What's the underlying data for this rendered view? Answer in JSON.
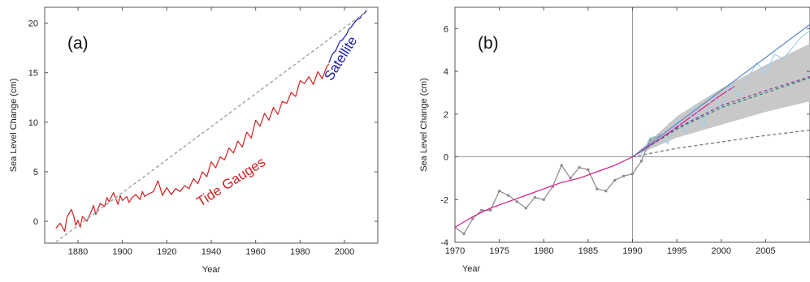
{
  "chart_data": [
    {
      "type": "line",
      "panel_label": "(a)",
      "title": "",
      "xlabel": "Year",
      "ylabel": "Sea Level Change (cm)",
      "xlim": [
        1865,
        2015
      ],
      "ylim": [
        -2.2,
        21.6
      ],
      "xticks": [
        1880,
        1900,
        1920,
        1940,
        1960,
        1980,
        2000
      ],
      "yticks": [
        0,
        5,
        10,
        15,
        20
      ],
      "grid": false,
      "legend": "none",
      "annotations": [
        {
          "text": "Tide Gauges",
          "x": 1950,
          "y": 3.6,
          "color": "#d02020",
          "rotate": -33
        },
        {
          "text": "Satellite",
          "x": 2000,
          "y": 16.2,
          "color": "#1a1aa8",
          "rotate": -58
        }
      ],
      "series": [
        {
          "color": "#d02020",
          "style": "solid",
          "x": [
            1870,
            1872,
            1874,
            1875,
            1877,
            1878,
            1879,
            1880,
            1881,
            1882,
            1884,
            1886,
            1887,
            1888,
            1890,
            1892,
            1893,
            1894,
            1896,
            1898,
            1899,
            1900,
            1902,
            1903,
            1904,
            1906,
            1908,
            1909,
            1910,
            1912,
            1914,
            1916,
            1917,
            1918,
            1920,
            1922,
            1924,
            1926,
            1928,
            1930,
            1932,
            1934,
            1936,
            1938,
            1940,
            1942,
            1944,
            1946,
            1948,
            1950,
            1952,
            1954,
            1956,
            1958,
            1960,
            1962,
            1964,
            1966,
            1968,
            1970,
            1972,
            1974,
            1976,
            1978,
            1980,
            1982,
            1984,
            1986,
            1988,
            1990,
            1992,
            1993
          ],
          "y": [
            -0.7,
            -0.2,
            -1.0,
            0.4,
            1.2,
            0.6,
            -0.4,
            0.1,
            -0.6,
            0.5,
            0.0,
            1.0,
            1.6,
            0.7,
            1.8,
            1.5,
            2.4,
            2.0,
            2.9,
            1.7,
            2.6,
            2.1,
            2.5,
            1.9,
            2.3,
            2.7,
            2.2,
            3.0,
            2.5,
            2.8,
            3.0,
            4.1,
            3.4,
            2.6,
            3.4,
            2.7,
            3.3,
            3.0,
            3.6,
            3.3,
            4.3,
            3.8,
            5.0,
            4.5,
            6.0,
            5.4,
            6.5,
            6.2,
            7.4,
            6.9,
            8.1,
            7.5,
            9.0,
            8.4,
            10.2,
            9.6,
            10.9,
            10.2,
            11.5,
            10.8,
            12.1,
            11.9,
            13.0,
            12.6,
            14.2,
            13.9,
            14.6,
            13.8,
            15.1,
            14.4,
            15.6,
            15.9
          ]
        },
        {
          "color": "#1a1aa8",
          "style": "solid",
          "x": [
            1993,
            1994,
            1995,
            1996,
            1997,
            1998,
            1999,
            2000,
            2001,
            2002,
            2003,
            2004,
            2005,
            2006,
            2007,
            2008,
            2009,
            2010
          ],
          "y": [
            16.0,
            16.6,
            17.0,
            17.2,
            17.7,
            18.2,
            18.3,
            18.6,
            18.9,
            19.4,
            19.6,
            19.9,
            20.2,
            20.4,
            20.5,
            20.9,
            21.0,
            21.3
          ]
        },
        {
          "color": "#999999",
          "style": "dashed",
          "x": [
            1870,
            2010
          ],
          "y": [
            -2.1,
            21.2
          ]
        }
      ]
    },
    {
      "type": "line",
      "panel_label": "(b)",
      "title": "",
      "xlabel": "Year",
      "ylabel": "Sea Level Change (cm)",
      "xlim": [
        1970,
        2010
      ],
      "ylim": [
        -4,
        7
      ],
      "xticks": [
        1970,
        1975,
        1980,
        1985,
        1990,
        1995,
        2000,
        2005
      ],
      "yticks": [
        -4,
        -2,
        0,
        2,
        4,
        6
      ],
      "grid": false,
      "legend": "none",
      "reference_lines": {
        "x": 1990,
        "y": 0
      },
      "band": {
        "color": "#c8c8c8",
        "x": [
          1990,
          1995,
          2000,
          2005,
          2010
        ],
        "upper": [
          0,
          1.9,
          3.2,
          4.3,
          5.3
        ],
        "lower": [
          0,
          0.9,
          1.5,
          2.1,
          2.6
        ]
      },
      "series": [
        {
          "color": "#888888",
          "style": "solid",
          "markers": true,
          "x": [
            1970,
            1971,
            1972,
            1973,
            1974,
            1975,
            1976,
            1977,
            1978,
            1979,
            1980,
            1981,
            1982,
            1983,
            1984,
            1985,
            1986,
            1987,
            1988,
            1989,
            1990,
            1991,
            1992,
            1993
          ],
          "y": [
            -3.3,
            -3.6,
            -2.9,
            -2.5,
            -2.5,
            -1.6,
            -1.8,
            -2.1,
            -2.4,
            -1.9,
            -2.0,
            -1.4,
            -0.4,
            -1.0,
            -0.5,
            -0.6,
            -1.5,
            -1.6,
            -1.1,
            -0.9,
            -0.8,
            -0.2,
            0.8,
            1.0
          ]
        },
        {
          "color": "#d81b8c",
          "style": "solid",
          "x": [
            1970,
            1972,
            1974,
            1976,
            1978,
            1980,
            1982,
            1984,
            1986,
            1988,
            1990,
            1992,
            1994,
            1996,
            1998,
            2000,
            2001.5
          ],
          "y": [
            -3.3,
            -2.8,
            -2.4,
            -2.1,
            -1.8,
            -1.5,
            -1.2,
            -1.0,
            -0.7,
            -0.4,
            0.0,
            0.55,
            1.1,
            1.7,
            2.3,
            2.9,
            3.3
          ]
        },
        {
          "color": "#9fd0ee",
          "style": "solid",
          "x": [
            1991,
            1992,
            1993,
            1994,
            1995,
            1996,
            1997,
            1998,
            1999,
            2000,
            2001,
            2002,
            2003,
            2004,
            2005,
            2006,
            2007,
            2008,
            2009,
            2010
          ],
          "y": [
            0.1,
            0.9,
            1.0,
            0.6,
            1.7,
            1.1,
            2.4,
            1.4,
            2.9,
            2.3,
            3.4,
            2.8,
            3.7,
            4.4,
            3.9,
            4.8,
            4.6,
            5.1,
            5.6,
            5.9
          ]
        },
        {
          "color": "#5a87c5",
          "style": "solid",
          "x": [
            1990,
            2010
          ],
          "y": [
            0.0,
            6.2
          ]
        },
        {
          "color": "#2f8f6f",
          "style": "dashed",
          "x": [
            1990,
            1995,
            2000,
            2005,
            2010
          ],
          "y": [
            0.0,
            1.3,
            2.3,
            3.0,
            3.7
          ]
        },
        {
          "color": "#8e44ad",
          "style": "dashed",
          "x": [
            1990,
            1995,
            2000,
            2005,
            2010
          ],
          "y": [
            0.0,
            1.35,
            2.4,
            3.1,
            3.75
          ]
        },
        {
          "color": "#777777",
          "style": "dashed",
          "x": [
            1990,
            1995,
            2000,
            2005,
            2010
          ],
          "y": [
            0.0,
            0.4,
            0.7,
            1.0,
            1.25
          ]
        }
      ]
    }
  ]
}
